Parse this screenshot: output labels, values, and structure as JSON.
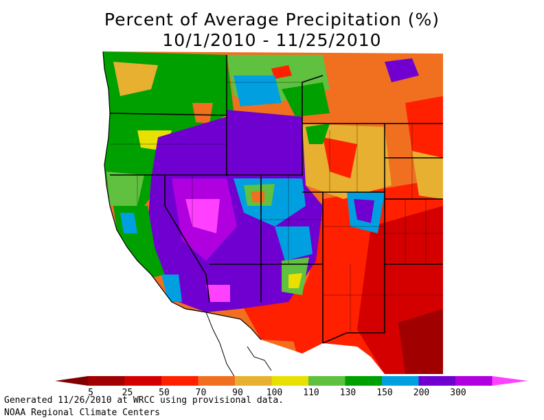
{
  "title": {
    "line1": "Percent of Average Precipitation (%)",
    "line2": "10/1/2010 - 11/25/2010"
  },
  "legend": {
    "bins": [
      {
        "label": "5",
        "color": "#a00000"
      },
      {
        "label": "25",
        "color": "#d40000"
      },
      {
        "label": "50",
        "color": "#ff2000"
      },
      {
        "label": "70",
        "color": "#f07020"
      },
      {
        "label": "90",
        "color": "#e8b030"
      },
      {
        "label": "100",
        "color": "#e8e000"
      },
      {
        "label": "110",
        "color": "#60c040"
      },
      {
        "label": "130",
        "color": "#00a000"
      },
      {
        "label": "150",
        "color": "#00a0e0"
      },
      {
        "label": "200",
        "color": "#7000d0"
      },
      {
        "label": "300",
        "color": "#b000e0"
      }
    ],
    "low_arrow_color": "#800000",
    "high_arrow_color": "#ff40ff"
  },
  "footer": {
    "line1": "Generated 11/26/2010 at WRCC using provisional data.",
    "line2": "NOAA Regional Climate Centers"
  },
  "colors": {
    "ocean": "#ffffff",
    "border": "#000000"
  }
}
